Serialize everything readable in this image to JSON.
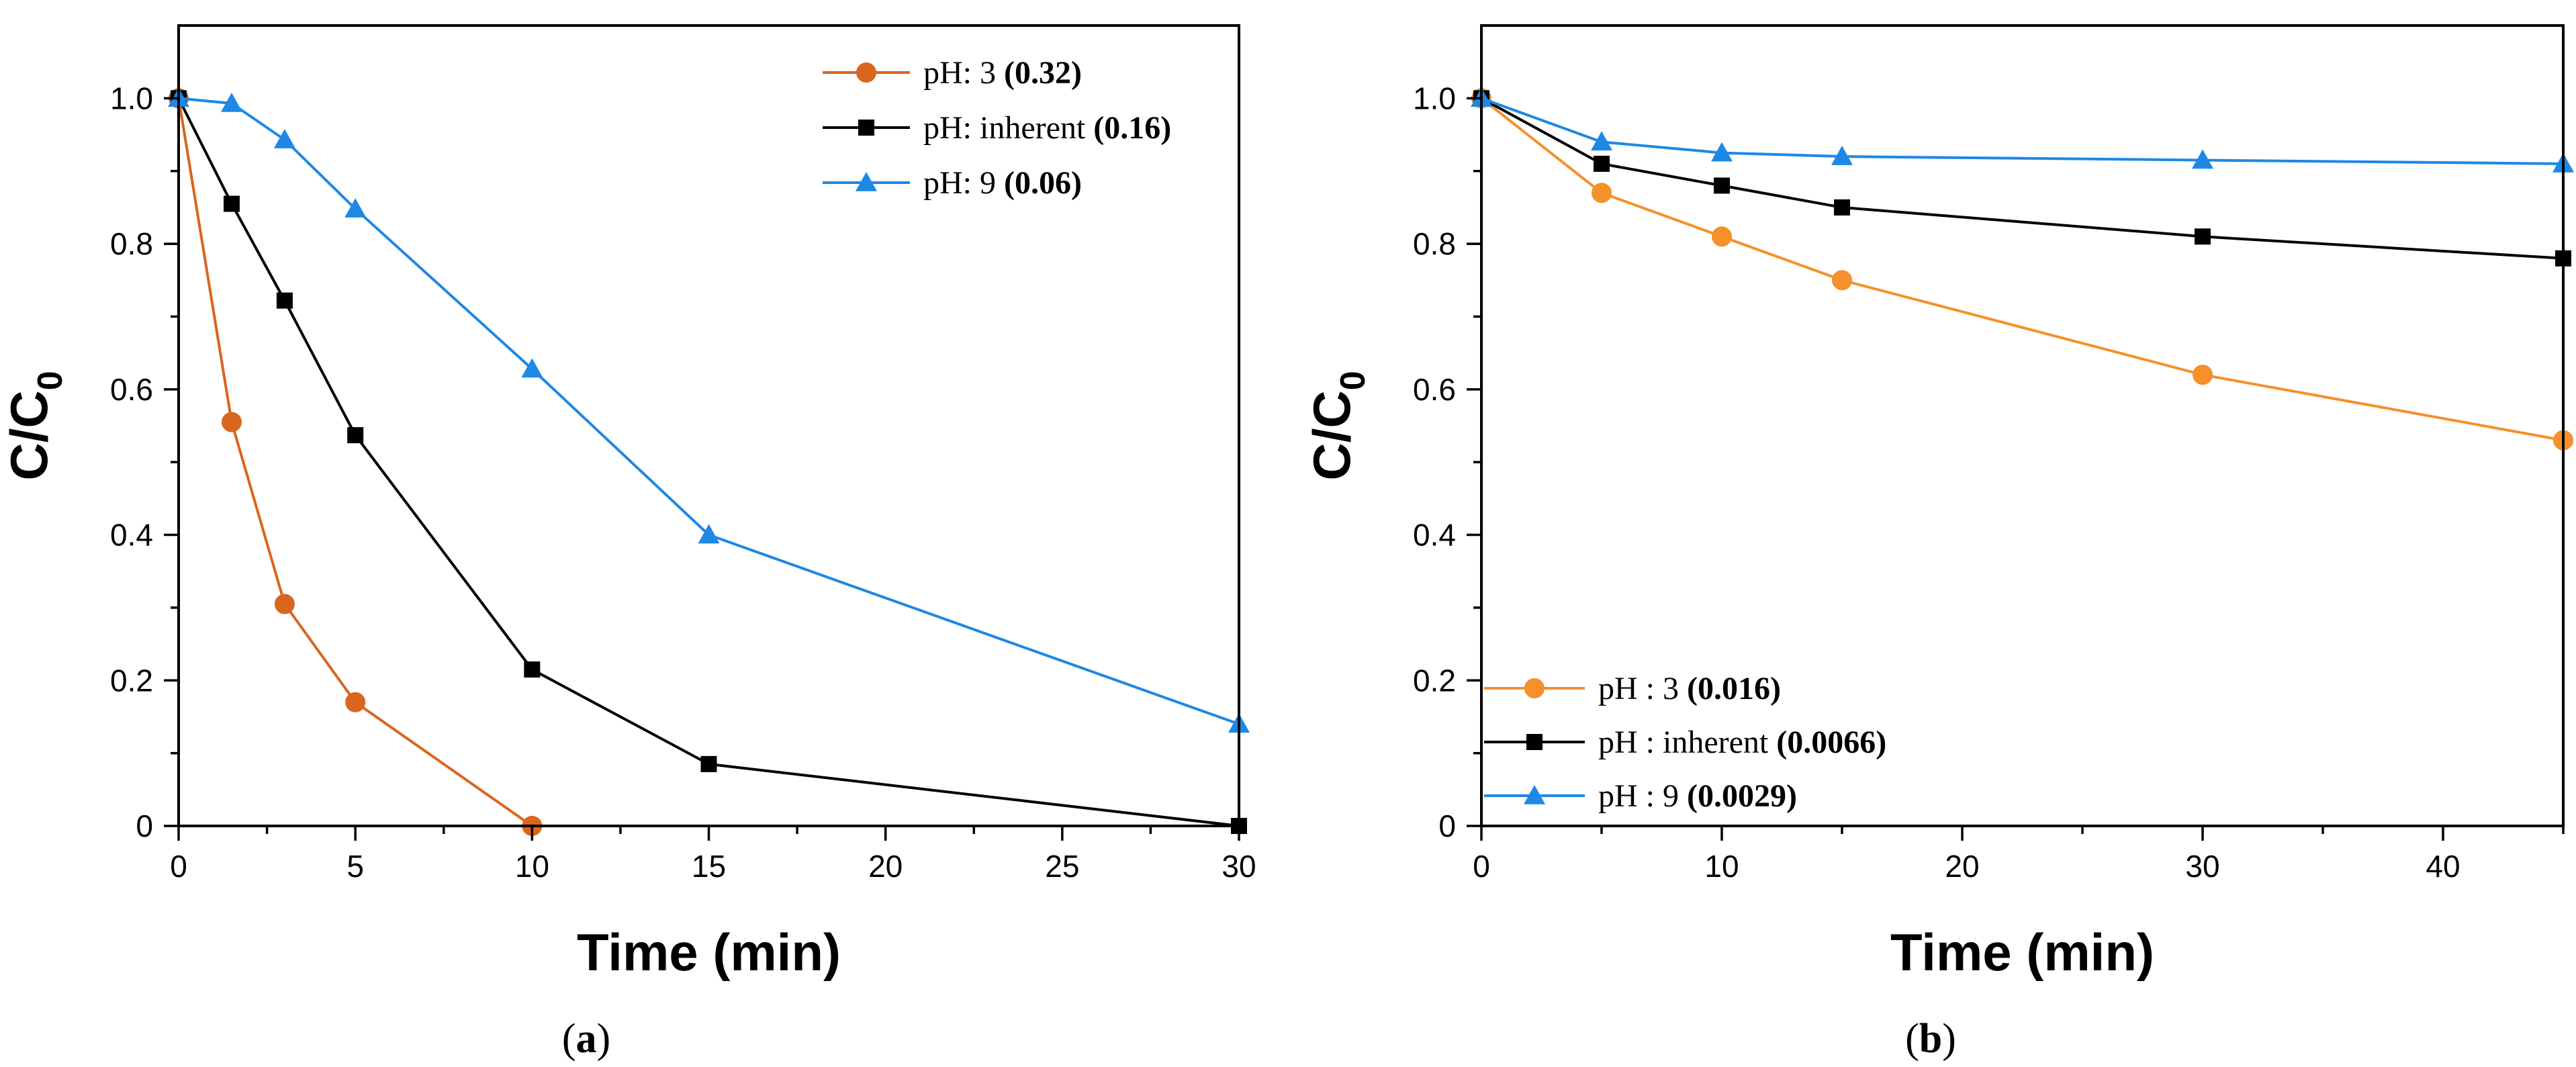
{
  "chart_data": [
    {
      "type": "line",
      "panel_label": "a",
      "xlabel": "Time (min)",
      "ylabel": "C/C",
      "ylabel_sub": "0",
      "xlim": [
        0,
        30
      ],
      "ylim": [
        0,
        1.1
      ],
      "x_ticks": [
        0,
        5,
        10,
        15,
        20,
        25,
        30
      ],
      "x_tick_labels": [
        "0",
        "5",
        "10",
        "15",
        "20",
        "25",
        "30"
      ],
      "y_ticks": [
        0,
        0.2,
        0.4,
        0.6,
        0.8,
        1.0
      ],
      "y_tick_labels": [
        "0",
        "0.2",
        "0.4",
        "0.6",
        "0.8",
        "1.0"
      ],
      "legend_position": "top-right",
      "series": [
        {
          "name": "pH: 3",
          "rate": "(0.32)",
          "color": "#d9661f",
          "marker": "circle",
          "x": [
            0,
            1.5,
            3,
            5,
            10
          ],
          "y": [
            1.0,
            0.555,
            0.305,
            0.17,
            0.0
          ]
        },
        {
          "name": "pH: inherent",
          "rate": "(0.16)",
          "color": "#000000",
          "marker": "square",
          "x": [
            0,
            1.5,
            3,
            5,
            10,
            15,
            30
          ],
          "y": [
            1.0,
            0.855,
            0.722,
            0.537,
            0.215,
            0.085,
            0.0
          ]
        },
        {
          "name": "pH: 9",
          "rate": "(0.06)",
          "color": "#1e88e5",
          "marker": "triangle",
          "x": [
            0,
            1.5,
            3,
            5,
            10,
            15,
            30
          ],
          "y": [
            1.0,
            0.993,
            0.943,
            0.848,
            0.628,
            0.4,
            0.14
          ]
        }
      ]
    },
    {
      "type": "line",
      "panel_label": "b",
      "xlabel": "Time (min)",
      "ylabel": "C/C",
      "ylabel_sub": "0",
      "xlim": [
        0,
        45
      ],
      "ylim": [
        0,
        1.1
      ],
      "x_ticks": [
        0,
        10,
        20,
        30,
        40
      ],
      "x_tick_labels": [
        "0",
        "10",
        "20",
        "30",
        "40"
      ],
      "y_ticks": [
        0,
        0.2,
        0.4,
        0.6,
        0.8,
        1.0
      ],
      "y_tick_labels": [
        "0",
        "0.2",
        "0.4",
        "0.6",
        "0.8",
        "1.0"
      ],
      "legend_position": "bottom-left",
      "series": [
        {
          "name": "pH : 3",
          "rate": "(0.016)",
          "color": "#f5902a",
          "marker": "circle",
          "x": [
            0,
            5,
            10,
            15,
            30,
            45
          ],
          "y": [
            1.0,
            0.87,
            0.81,
            0.75,
            0.62,
            0.53
          ]
        },
        {
          "name": "pH : inherent",
          "rate": "(0.0066)",
          "color": "#000000",
          "marker": "square",
          "x": [
            0,
            5,
            10,
            15,
            30,
            45
          ],
          "y": [
            1.0,
            0.91,
            0.88,
            0.85,
            0.81,
            0.78
          ]
        },
        {
          "name": "pH : 9",
          "rate": "(0.0029)",
          "color": "#1e88e5",
          "marker": "triangle",
          "x": [
            0,
            5,
            10,
            15,
            30,
            45
          ],
          "y": [
            1.0,
            0.94,
            0.925,
            0.92,
            0.915,
            0.91
          ]
        }
      ]
    }
  ],
  "captions": {
    "a": "(a)",
    "b": "(b)"
  }
}
